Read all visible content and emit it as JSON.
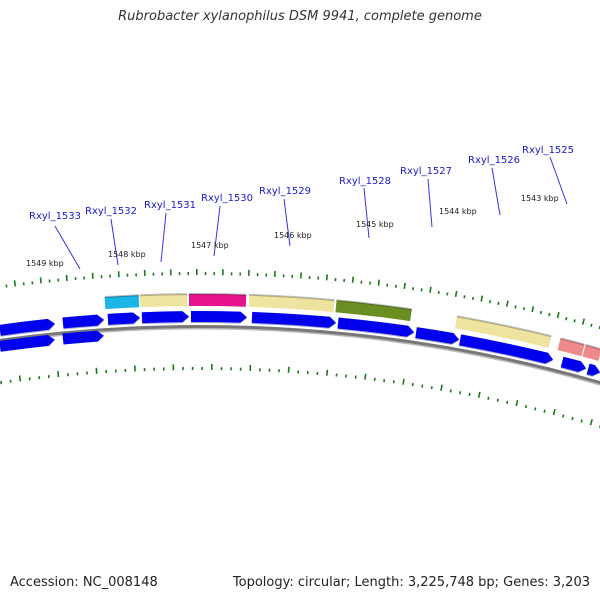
{
  "title": "Rubrobacter xylanophilus DSM 9941, complete genome",
  "accession": "Accession: NC_008148",
  "stats": "Topology: circular; Length: 3,225,748 bp; Genes: 3,203",
  "colors": {
    "cds_forward": "#0000ee",
    "backbone": "#777777",
    "tick": "#1a7a1a",
    "leader": "#3333ee",
    "label": "#1a1acc",
    "feature_cyan": "#19b6e6",
    "feature_yellow": "#efe3a0",
    "feature_magenta": "#e6138a",
    "feature_olive": "#6b8e23",
    "feature_pink": "#ee8a8a"
  },
  "kbp_labels": [
    "1549 kbp",
    "1548 kbp",
    "1547 kbp",
    "1546 kbp",
    "1545 kbp",
    "1544 kbp",
    "1543 kbp"
  ],
  "gene_labels": [
    "Rxyl_1533",
    "Rxyl_1532",
    "Rxyl_1531",
    "Rxyl_1530",
    "Rxyl_1529",
    "Rxyl_1528",
    "Rxyl_1527",
    "Rxyl_1526",
    "Rxyl_1525"
  ]
}
